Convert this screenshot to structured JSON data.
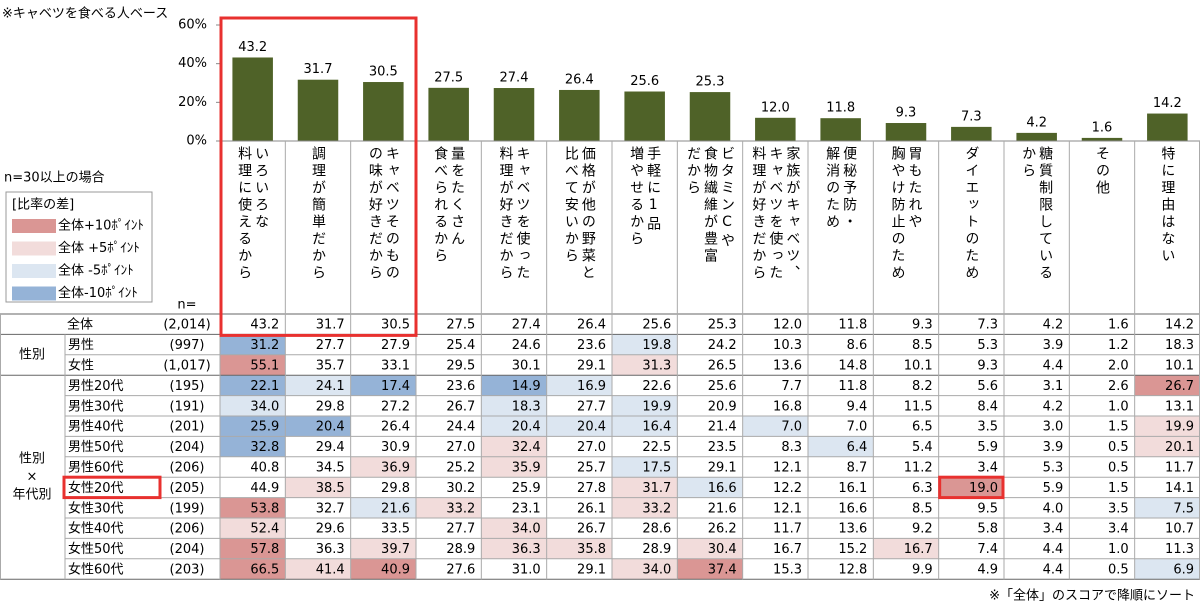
{
  "note_top": "※キャベツを食べる人ベース",
  "chart_data": {
    "type": "bar",
    "categories": [
      [
        "いろいろな",
        "料理に使えるから"
      ],
      [
        "調理が簡単だから"
      ],
      [
        "キャベツそのもの",
        "の味が好きだから"
      ],
      [
        "量をたくさん",
        "食べられるから"
      ],
      [
        "キャベツを使った",
        "料理が好きだから"
      ],
      [
        "価格が他の野菜と",
        "比べて安いから"
      ],
      [
        "手軽に1品",
        "増やせるから"
      ],
      [
        "ビタミンCや",
        "食物繊維が豊富",
        "だから"
      ],
      [
        "家族がキャベツ、",
        "キャベツを使った",
        "料理が好きだから"
      ],
      [
        "便秘予防・",
        "解消のため"
      ],
      [
        "胃もたれや",
        "胸やけ防止のため"
      ],
      [
        "ダイエットのため"
      ],
      [
        "糖質制限している",
        "から"
      ],
      [
        "その他"
      ],
      [
        "特に理由はない"
      ]
    ],
    "values": [
      43.2,
      31.7,
      30.5,
      27.5,
      27.4,
      26.4,
      25.6,
      25.3,
      12.0,
      11.8,
      9.3,
      7.3,
      4.2,
      1.6,
      14.2
    ],
    "value_labels": [
      "43.2",
      "31.7",
      "30.5",
      "27.5",
      "27.4",
      "26.4",
      "25.6",
      "25.3",
      "12.0",
      "11.8",
      "9.3",
      "7.3",
      "4.2",
      "1.6",
      "14.2"
    ],
    "color": "#4f6228",
    "ylim": [
      0,
      60
    ],
    "yticks": [
      {
        "value": 0,
        "label": "0%"
      },
      {
        "value": 20,
        "label": "20%"
      },
      {
        "value": 40,
        "label": "40%"
      },
      {
        "value": 60,
        "label": "60%"
      }
    ]
  },
  "sample_note": "n=30以上の場合",
  "legend": {
    "title": "[比率の差]",
    "entries": [
      {
        "label": "全体+10ﾎﾟｲﾝﾄ",
        "color": "#da9694",
        "threshold": 10
      },
      {
        "label": "全体 +5ﾎﾟｲﾝﾄ",
        "color": "#f2dcdb",
        "threshold": 5
      },
      {
        "label": "全体 -5ﾎﾟｲﾝﾄ",
        "color": "#dce6f1",
        "threshold": -5
      },
      {
        "label": "全体-10ﾎﾟｲﾝﾄ",
        "color": "#95b3d7",
        "threshold": -10
      }
    ]
  },
  "table": {
    "n_header": "n=",
    "total": {
      "label": "全体",
      "n": "(2,014)",
      "cells": [
        "43.2",
        "31.7",
        "30.5",
        "27.5",
        "27.4",
        "26.4",
        "25.6",
        "25.3",
        "12.0",
        "11.8",
        "9.3",
        "7.3",
        "4.2",
        "1.6",
        "14.2"
      ]
    },
    "groups": [
      {
        "label": [
          "性別"
        ],
        "rows": [
          {
            "label": "男性",
            "n": "(997)",
            "cells": [
              "31.2",
              "27.7",
              "27.9",
              "25.4",
              "24.6",
              "23.6",
              "19.8",
              "24.2",
              "10.3",
              "8.6",
              "8.5",
              "5.3",
              "3.9",
              "1.2",
              "18.3"
            ]
          },
          {
            "label": "女性",
            "n": "(1,017)",
            "cells": [
              "55.1",
              "35.7",
              "33.1",
              "29.5",
              "30.1",
              "29.1",
              "31.3",
              "26.5",
              "13.6",
              "14.8",
              "10.1",
              "9.3",
              "4.4",
              "2.0",
              "10.1"
            ]
          }
        ]
      },
      {
        "label": [
          "性別",
          "×",
          "年代別"
        ],
        "rows": [
          {
            "label": "男性20代",
            "n": "(195)",
            "cells": [
              "22.1",
              "24.1",
              "17.4",
              "23.6",
              "14.9",
              "16.9",
              "22.6",
              "25.6",
              "7.7",
              "11.8",
              "8.2",
              "5.6",
              "3.1",
              "2.6",
              "26.7"
            ]
          },
          {
            "label": "男性30代",
            "n": "(191)",
            "cells": [
              "34.0",
              "29.8",
              "27.2",
              "26.7",
              "18.3",
              "27.7",
              "19.9",
              "20.9",
              "16.8",
              "9.4",
              "11.5",
              "8.4",
              "4.2",
              "1.0",
              "13.1"
            ]
          },
          {
            "label": "男性40代",
            "n": "(201)",
            "cells": [
              "25.9",
              "20.4",
              "26.4",
              "24.4",
              "20.4",
              "20.4",
              "16.4",
              "21.4",
              "7.0",
              "7.0",
              "6.5",
              "3.5",
              "3.0",
              "1.5",
              "19.9"
            ]
          },
          {
            "label": "男性50代",
            "n": "(204)",
            "cells": [
              "32.8",
              "29.4",
              "30.9",
              "27.0",
              "32.4",
              "27.0",
              "22.5",
              "23.5",
              "8.3",
              "6.4",
              "5.4",
              "5.9",
              "3.9",
              "0.5",
              "20.1"
            ]
          },
          {
            "label": "男性60代",
            "n": "(206)",
            "cells": [
              "40.8",
              "34.5",
              "36.9",
              "25.2",
              "35.9",
              "25.7",
              "17.5",
              "29.1",
              "12.1",
              "8.7",
              "11.2",
              "3.4",
              "5.3",
              "0.5",
              "11.7"
            ]
          },
          {
            "label": "女性20代",
            "n": "(205)",
            "cells": [
              "44.9",
              "38.5",
              "29.8",
              "30.2",
              "25.9",
              "27.8",
              "31.7",
              "16.6",
              "12.2",
              "16.1",
              "6.3",
              "19.0",
              "5.9",
              "1.5",
              "14.1"
            ]
          },
          {
            "label": "女性30代",
            "n": "(199)",
            "cells": [
              "53.8",
              "32.7",
              "21.6",
              "33.2",
              "23.1",
              "26.1",
              "33.2",
              "21.6",
              "12.1",
              "16.6",
              "8.5",
              "9.5",
              "4.0",
              "3.5",
              "7.5"
            ]
          },
          {
            "label": "女性40代",
            "n": "(206)",
            "cells": [
              "52.4",
              "29.6",
              "33.5",
              "27.7",
              "34.0",
              "26.7",
              "28.6",
              "26.2",
              "11.7",
              "13.6",
              "9.2",
              "5.8",
              "3.4",
              "3.4",
              "10.7"
            ]
          },
          {
            "label": "女性50代",
            "n": "(204)",
            "cells": [
              "57.8",
              "36.3",
              "39.7",
              "28.9",
              "36.3",
              "35.8",
              "28.9",
              "30.4",
              "16.7",
              "15.2",
              "16.7",
              "7.4",
              "4.4",
              "1.0",
              "11.3"
            ]
          },
          {
            "label": "女性60代",
            "n": "(203)",
            "cells": [
              "66.5",
              "41.4",
              "40.9",
              "27.6",
              "31.0",
              "29.1",
              "34.0",
              "37.4",
              "15.3",
              "12.8",
              "9.9",
              "4.9",
              "4.4",
              "0.5",
              "6.9"
            ]
          }
        ]
      }
    ]
  },
  "footer": "※「全体」のスコアで降順にソート"
}
